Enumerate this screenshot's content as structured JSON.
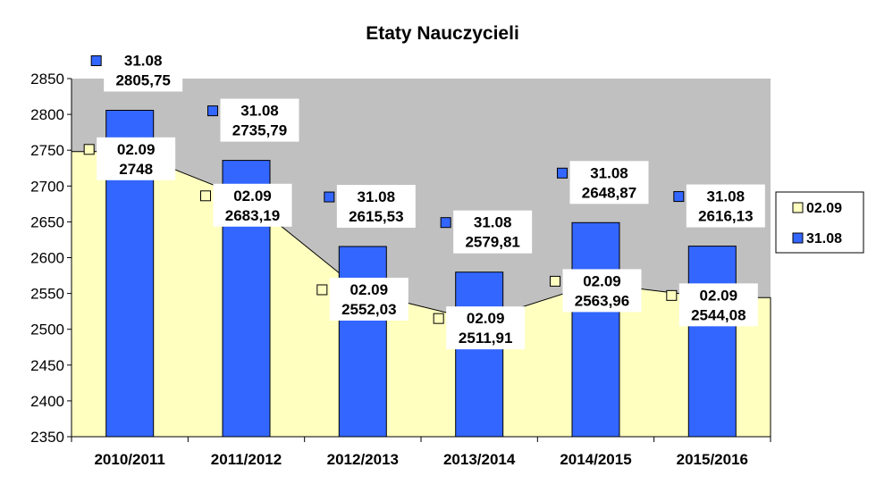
{
  "chart_data": {
    "type": "bar+area",
    "title": "Etaty Nauczycieli",
    "categories": [
      "2010/2011",
      "2011/2012",
      "2012/2013",
      "2013/2014",
      "2014/2015",
      "2015/2016"
    ],
    "series": [
      {
        "name": "02.09",
        "kind": "area",
        "color": "#ffffc0",
        "values": [
          2748,
          2683.19,
          2552.03,
          2511.91,
          2563.96,
          2544.08
        ],
        "labels": [
          "2748",
          "2683,19",
          "2552,03",
          "2511,91",
          "2563,96",
          "2544,08"
        ]
      },
      {
        "name": "31.08",
        "kind": "bar",
        "color": "#3366ff",
        "values": [
          2805.75,
          2735.79,
          2615.53,
          2579.81,
          2648.87,
          2616.13
        ],
        "labels": [
          "2805,75",
          "2735,79",
          "2615,53",
          "2579,81",
          "2648,87",
          "2616,13"
        ]
      }
    ],
    "ylim": [
      2350,
      2850
    ],
    "yticks": [
      "2350",
      "2400",
      "2450",
      "2500",
      "2550",
      "2600",
      "2650",
      "2700",
      "2750",
      "2800",
      "2850"
    ],
    "plot_background": "#c0c0c0",
    "grid": false,
    "legend": "right",
    "legend_entries": [
      "02.09",
      "31.08"
    ]
  }
}
